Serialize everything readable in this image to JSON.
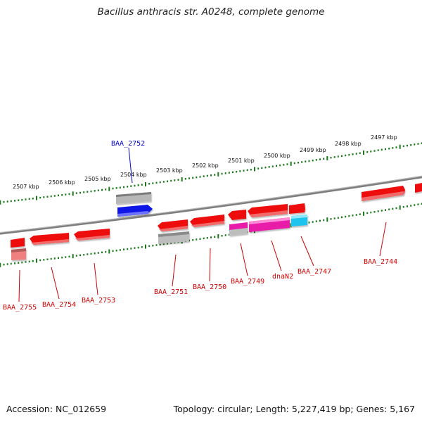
{
  "title": "Bacillus anthracis str. A0248, complete genome",
  "footer": {
    "accession": "Accession: NC_012659",
    "stats": "Topology: circular; Length: 5,227,419 bp; Genes: 5,167"
  },
  "colors": {
    "gene": "#ee1111",
    "highlight": "#0a14e6",
    "magenta": "#e81aa8",
    "cyan": "#1ec4ee",
    "grey": "#b8b8b8",
    "pale": "#f08080",
    "tick": "#1a7a1a",
    "backbone": "#808080",
    "red_label": "#cc0000",
    "blue_label": "#0000cc"
  },
  "kbp_labels": [
    "2507 kbp",
    "2506 kbp",
    "2505 kbp",
    "2504 kbp",
    "2503 kbp",
    "2502 kbp",
    "2501 kbp",
    "2500 kbp",
    "2499 kbp",
    "2498 kbp",
    "2497 kbp"
  ],
  "gene_labels": [
    "BAA_2752",
    "BAA_2755",
    "BAA_2754",
    "BAA_2753",
    "BAA_2751",
    "BAA_2750",
    "BAA_2749",
    "dnaN2",
    "BAA_2747",
    "BAA_2744"
  ]
}
